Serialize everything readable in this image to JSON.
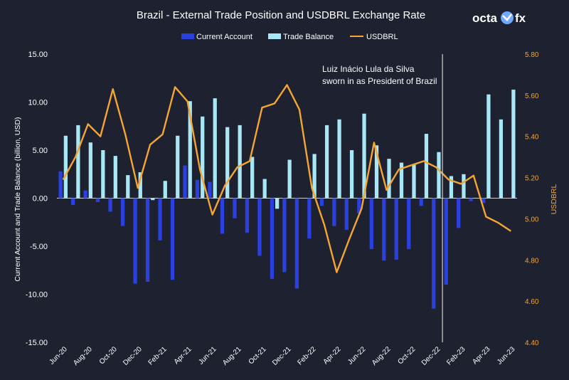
{
  "chart_data": {
    "type": "bar+line",
    "title": "Brazil - External Trade Position and USDBRL Exchange Rate",
    "logo": {
      "left": "octa",
      "right": "fx"
    },
    "legend": [
      {
        "name": "Current Account",
        "color": "#2a40e0",
        "kind": "bar"
      },
      {
        "name": "Trade Balance",
        "color": "#a8e8f6",
        "kind": "bar"
      },
      {
        "name": "USDBRL",
        "color": "#f4a533",
        "kind": "line"
      }
    ],
    "ylabel_left": "Current Account and Trade Balance (billion, USD)",
    "ylabel_right": "USDBRL",
    "ylim_left": [
      -15,
      15
    ],
    "ylim_right": [
      4.4,
      5.8
    ],
    "yticks_left": [
      "15.00",
      "10.00",
      "5.00",
      "0.00",
      "-5.00",
      "-10.00",
      "-15.00"
    ],
    "yticks_right": [
      "5.80",
      "5.60",
      "5.40",
      "5.20",
      "5.00",
      "4.80",
      "4.60",
      "4.40"
    ],
    "categories": [
      "Jun-20",
      "Jul-20",
      "Aug-20",
      "Sep-20",
      "Oct-20",
      "Nov-20",
      "Dec-20",
      "Jan-21",
      "Feb-21",
      "Mar-21",
      "Apr-21",
      "May-21",
      "Jun-21",
      "Jul-21",
      "Aug-21",
      "Sep-21",
      "Oct-21",
      "Nov-21",
      "Dec-21",
      "Jan-22",
      "Feb-22",
      "Mar-22",
      "Apr-22",
      "May-22",
      "Jun-22",
      "Jul-22",
      "Aug-22",
      "Sep-22",
      "Oct-22",
      "Nov-22",
      "Dec-22",
      "Jan-23",
      "Feb-23",
      "Mar-23",
      "Apr-23",
      "May-23",
      "Jun-23"
    ],
    "xtick_labels": [
      "Jun-20",
      "Aug-20",
      "Oct-20",
      "Dec-20",
      "Feb-21",
      "Apr-21",
      "Jun-21",
      "Aug-21",
      "Oct-21",
      "Dec-21",
      "Feb-22",
      "Apr-22",
      "Jun-22",
      "Aug-22",
      "Oct-22",
      "Dec-22",
      "Feb-23",
      "Apr-23",
      "Jun-23"
    ],
    "series": [
      {
        "name": "Current Account",
        "values": [
          2.8,
          -0.7,
          0.8,
          -0.4,
          -1.4,
          -2.9,
          -8.9,
          -8.7,
          -4.4,
          -8.5,
          3.4,
          1.9,
          1.7,
          -3.7,
          -2.1,
          -3.6,
          -6.0,
          -8.4,
          -7.7,
          -9.4,
          -4.2,
          -0.8,
          -2.9,
          -3.3,
          -1.6,
          -5.3,
          -6.5,
          -6.4,
          -5.3,
          -0.8,
          -11.5,
          -9.0,
          -3.1,
          -0.3,
          -0.5,
          0.0,
          0.0
        ]
      },
      {
        "name": "Trade Balance",
        "values": [
          6.5,
          7.6,
          5.8,
          5.0,
          4.4,
          2.4,
          2.7,
          -0.2,
          1.8,
          6.5,
          10.1,
          8.5,
          10.4,
          7.4,
          7.6,
          4.3,
          2.0,
          -1.1,
          4.0,
          0.0,
          4.6,
          7.6,
          8.2,
          5.0,
          8.8,
          5.5,
          4.1,
          3.7,
          3.5,
          6.7,
          4.8,
          2.3,
          2.5,
          0.0,
          10.8,
          8.2,
          11.3
        ]
      },
      {
        "name": "USDBRL",
        "values": [
          5.19,
          5.3,
          5.46,
          5.4,
          5.63,
          5.41,
          5.15,
          5.36,
          5.41,
          5.64,
          5.57,
          5.24,
          5.02,
          5.16,
          5.25,
          5.28,
          5.54,
          5.56,
          5.65,
          5.53,
          5.15,
          4.97,
          4.74,
          4.9,
          5.05,
          5.37,
          5.14,
          5.24,
          5.26,
          5.28,
          5.25,
          5.19,
          5.17,
          5.21,
          5.01,
          4.98,
          4.94
        ]
      }
    ],
    "annotation": {
      "lines": [
        "Luiz Inácio Lula da Silva",
        "sworn in as President of Brazil"
      ],
      "after_category": "Dec-22"
    }
  }
}
